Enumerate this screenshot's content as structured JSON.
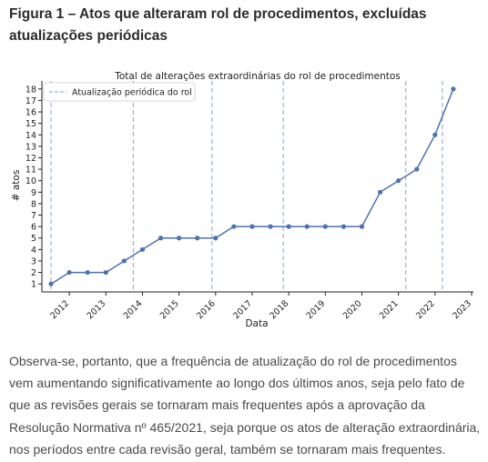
{
  "figure_title": "Figura 1 – Atos que alteraram rol de procedimentos, excluídas atualizações periódicas",
  "paragraph": "Observa-se, portanto, que a frequência de atualização do rol de procedimentos vem aumentando significativamente ao longo dos últimos anos, seja pelo fato de que as revisões gerais se tornaram mais frequentes após a aprovação da Resolução Normativa nº 465/2021, seja porque os atos de alteração extraordinária, nos períodos entre cada revisão geral, também se tornaram mais frequentes.",
  "chart_data": {
    "type": "line",
    "title": "Total de alterações extraordinárias do rol de procedimentos",
    "xlabel": "Data",
    "ylabel": "# atos",
    "x_ticks": [
      "2012",
      "2013",
      "2014",
      "2015",
      "2016",
      "2017",
      "2018",
      "2019",
      "2020",
      "2021",
      "2022",
      "2023"
    ],
    "y_ticks": [
      1,
      2,
      3,
      4,
      5,
      6,
      7,
      8,
      9,
      10,
      11,
      12,
      13,
      14,
      15,
      16,
      17,
      18
    ],
    "xlim": [
      2011.25,
      2023.05
    ],
    "ylim": [
      0.3,
      18.7
    ],
    "grid": false,
    "legend": "top-left",
    "series": [
      {
        "values": [
          {
            "x": 2011.5,
            "y": 1
          },
          {
            "x": 2012.0,
            "y": 2
          },
          {
            "x": 2012.5,
            "y": 2
          },
          {
            "x": 2013.0,
            "y": 2
          },
          {
            "x": 2013.5,
            "y": 3
          },
          {
            "x": 2014.0,
            "y": 4
          },
          {
            "x": 2014.5,
            "y": 5
          },
          {
            "x": 2015.0,
            "y": 5
          },
          {
            "x": 2015.5,
            "y": 5
          },
          {
            "x": 2016.0,
            "y": 5
          },
          {
            "x": 2016.5,
            "y": 6
          },
          {
            "x": 2017.0,
            "y": 6
          },
          {
            "x": 2017.5,
            "y": 6
          },
          {
            "x": 2018.0,
            "y": 6
          },
          {
            "x": 2018.5,
            "y": 6
          },
          {
            "x": 2019.0,
            "y": 6
          },
          {
            "x": 2019.5,
            "y": 6
          },
          {
            "x": 2020.0,
            "y": 6
          },
          {
            "x": 2020.5,
            "y": 9
          },
          {
            "x": 2021.0,
            "y": 10
          },
          {
            "x": 2021.5,
            "y": 11
          },
          {
            "x": 2022.0,
            "y": 14
          },
          {
            "x": 2022.5,
            "y": 18
          }
        ],
        "color": "#4c72b0"
      }
    ],
    "reference_lines": {
      "label": "Atualização periódica do rol",
      "color": "#9cb2d6",
      "x": [
        2011.5,
        2013.75,
        2015.9,
        2017.85,
        2021.2,
        2022.2
      ]
    }
  }
}
